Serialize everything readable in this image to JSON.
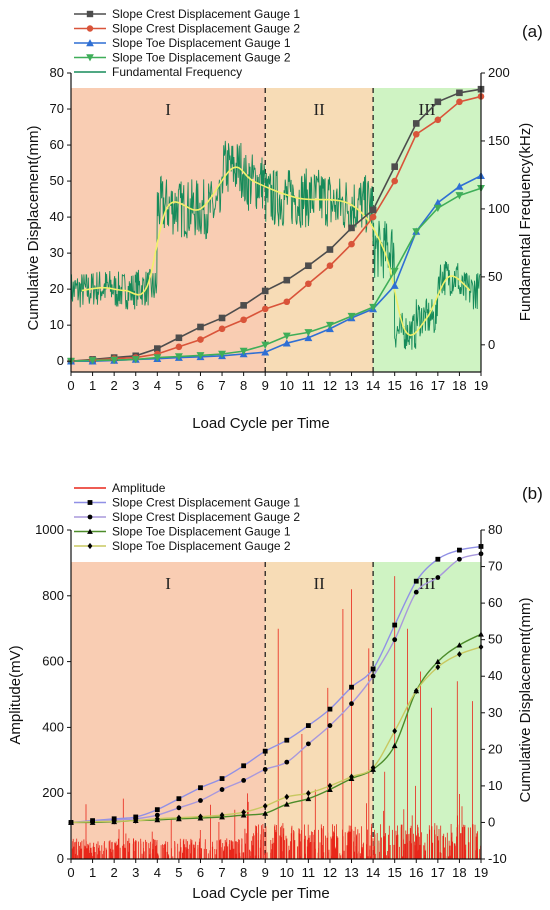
{
  "chart_data": [
    {
      "type": "line",
      "panel_label": "(a)",
      "xlabel": "Load Cycle per Time",
      "ylabel": "Cumulative Displacement(mm)",
      "y2label": "Fundamental Frequency(kHz)",
      "xlim": [
        0,
        19
      ],
      "ylim": [
        -3,
        80
      ],
      "y2lim": [
        -20,
        200
      ],
      "xticks": [
        "0",
        "1",
        "2",
        "3",
        "4",
        "5",
        "6",
        "7",
        "8",
        "9",
        "10",
        "11",
        "12",
        "13",
        "14",
        "15",
        "16",
        "17",
        "18",
        "19"
      ],
      "yticks": [
        "0",
        "10",
        "20",
        "30",
        "40",
        "50",
        "60",
        "70",
        "80"
      ],
      "y2ticks": [
        "0",
        "50",
        "100",
        "150",
        "200"
      ],
      "stages": [
        {
          "label": "I",
          "from": 0,
          "to": 9,
          "color": "#f9cdb3"
        },
        {
          "label": "II",
          "from": 9,
          "to": 14,
          "color": "#f7dcb6"
        },
        {
          "label": "III",
          "from": 14,
          "to": 19,
          "color": "#cff3c3"
        }
      ],
      "legend_position": "top-left",
      "grid": false,
      "x": [
        0,
        1,
        2,
        3,
        4,
        5,
        6,
        7,
        8,
        9,
        10,
        11,
        12,
        13,
        14,
        15,
        16,
        17,
        18,
        19
      ],
      "series": [
        {
          "name": "Slope Crest Displacement Gauge 1",
          "color": "#4d4d4d",
          "marker": "square",
          "values": [
            0,
            0.5,
            1,
            1.5,
            3.5,
            6.5,
            9.5,
            12,
            15.5,
            19.5,
            22.5,
            26.5,
            31,
            37,
            42,
            54,
            66,
            72,
            74.5,
            75.5
          ]
        },
        {
          "name": "Slope Crest Displacement Gauge 2",
          "color": "#d9543a",
          "marker": "circle",
          "values": [
            0,
            0.3,
            0.7,
            1,
            2,
            4,
            6,
            9,
            11.5,
            14.5,
            16.5,
            21.5,
            26.5,
            32.5,
            40,
            50,
            63,
            67,
            72,
            73.5
          ]
        },
        {
          "name": "Slope Toe Displacement Gauge 1",
          "color": "#2f6fd4",
          "marker": "triangle-up",
          "values": [
            0,
            0,
            0.2,
            0.5,
            0.7,
            1,
            1.2,
            1.5,
            2,
            2.5,
            5,
            6.5,
            9,
            12,
            14.5,
            21,
            36,
            44,
            48.5,
            51.5
          ]
        },
        {
          "name": "Slope Toe Displacement Gauge 2",
          "color": "#3fae59",
          "marker": "triangle-down",
          "values": [
            0,
            0.2,
            0.3,
            0.5,
            1,
            1.3,
            1.6,
            2,
            2.8,
            4.5,
            7,
            8,
            10,
            12.5,
            15,
            25,
            36,
            42.5,
            46,
            48
          ]
        }
      ],
      "frequency_series": {
        "name": "Fundamental Frequency",
        "color": "#168b5a",
        "smooth_color": "#f2f06a",
        "segments": [
          {
            "from": 0,
            "to": 1,
            "mean": 40
          },
          {
            "from": 1,
            "to": 2,
            "mean": 42
          },
          {
            "from": 2,
            "to": 3,
            "mean": 40
          },
          {
            "from": 3,
            "to": 4,
            "mean": 42
          },
          {
            "from": 4,
            "to": 5,
            "mean": 102
          },
          {
            "from": 5,
            "to": 7,
            "mean": 100
          },
          {
            "from": 7,
            "to": 8,
            "mean": 130
          },
          {
            "from": 8,
            "to": 9,
            "mean": 120
          },
          {
            "from": 9,
            "to": 12,
            "mean": 108
          },
          {
            "from": 12,
            "to": 14,
            "mean": 103
          },
          {
            "from": 14,
            "to": 15,
            "mean": 70
          },
          {
            "from": 15,
            "to": 16,
            "mean": 10
          },
          {
            "from": 16,
            "to": 17,
            "mean": 20
          },
          {
            "from": 17,
            "to": 18,
            "mean": 50
          },
          {
            "from": 18,
            "to": 19,
            "mean": 40
          }
        ]
      }
    },
    {
      "type": "line",
      "panel_label": "(b)",
      "xlabel": "Load Cycle per Time",
      "ylabel": "Amplitude(mV)",
      "y2label": "Cumulative Displacement(mm)",
      "xlim": [
        0,
        19
      ],
      "ylim": [
        0,
        1000
      ],
      "y2lim": [
        -10,
        80
      ],
      "xticks": [
        "0",
        "1",
        "2",
        "3",
        "4",
        "5",
        "6",
        "7",
        "8",
        "9",
        "10",
        "11",
        "12",
        "13",
        "14",
        "15",
        "16",
        "17",
        "18",
        "19"
      ],
      "yticks": [
        "0",
        "200",
        "400",
        "600",
        "800",
        "1000"
      ],
      "y2ticks": [
        "-10",
        "0",
        "10",
        "20",
        "30",
        "40",
        "50",
        "60",
        "70",
        "80"
      ],
      "stages": [
        {
          "label": "I",
          "from": 0,
          "to": 9,
          "color": "#f9cdb3"
        },
        {
          "label": "II",
          "from": 9,
          "to": 14,
          "color": "#f7dcb6"
        },
        {
          "label": "III",
          "from": 14,
          "to": 19,
          "color": "#cff3c3"
        }
      ],
      "legend_position": "top-left",
      "grid": false,
      "x": [
        0,
        1,
        2,
        3,
        4,
        5,
        6,
        7,
        8,
        9,
        10,
        11,
        12,
        13,
        14,
        15,
        16,
        17,
        18,
        19
      ],
      "amplitude_series": {
        "name": "Amplitude",
        "color": "#e8261a",
        "peaks": [
          [
            9.6,
            700
          ],
          [
            10.7,
            380
          ],
          [
            11.9,
            520
          ],
          [
            12.6,
            760
          ],
          [
            13.0,
            820
          ],
          [
            13.8,
            640
          ],
          [
            15.0,
            860
          ],
          [
            15.6,
            700
          ],
          [
            16.2,
            570
          ],
          [
            16.7,
            460
          ],
          [
            17.9,
            540
          ],
          [
            18.6,
            480
          ],
          [
            19.0,
            700
          ]
        ]
      },
      "series": [
        {
          "name": "Slope Crest Displacement Gauge 1",
          "color": "#9090e6",
          "marker": "square",
          "values": [
            0,
            0.5,
            1,
            1.5,
            3.5,
            6.5,
            9.5,
            12,
            15.5,
            19.5,
            22.5,
            26.5,
            31,
            37,
            42,
            54,
            66,
            72,
            74.5,
            75.5
          ]
        },
        {
          "name": "Slope Crest Displacement Gauge 2",
          "color": "#a898dc",
          "marker": "circle",
          "values": [
            0,
            0.3,
            0.7,
            1,
            2,
            4,
            6,
            9,
            11.5,
            14.5,
            16.5,
            21.5,
            26.5,
            32.5,
            40,
            50,
            63,
            67,
            72,
            73.5
          ]
        },
        {
          "name": "Slope Toe Displacement Gauge 1",
          "color": "#4d8c2a",
          "marker": "triangle-up",
          "values": [
            0,
            0,
            0.2,
            0.5,
            0.7,
            1,
            1.2,
            1.5,
            2,
            2.5,
            5,
            6.5,
            9,
            12,
            14.5,
            21,
            36,
            44,
            48.5,
            51.5
          ]
        },
        {
          "name": "Slope Toe Displacement Gauge 2",
          "color": "#c8c860",
          "marker": "diamond",
          "values": [
            0,
            0.2,
            0.3,
            0.5,
            1,
            1.3,
            1.6,
            2,
            2.8,
            4.5,
            7,
            8,
            10,
            12.5,
            15,
            25,
            36,
            42.5,
            46,
            48
          ]
        }
      ]
    }
  ]
}
